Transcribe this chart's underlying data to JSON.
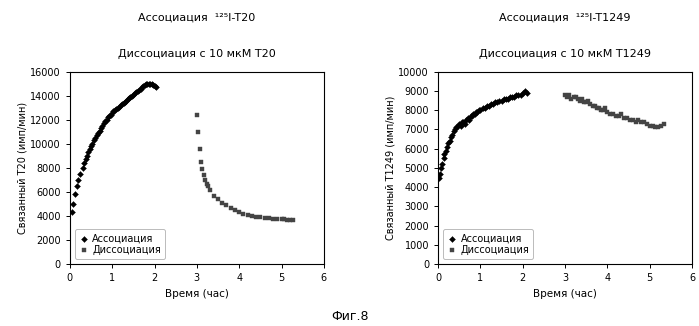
{
  "fig_title": "Фиг.8",
  "left_plot": {
    "title_line1": "Ассоциация  ¹²⁵I-T20",
    "title_line2": "Диссоциация с 10 мкМ T20",
    "xlabel": "Время (час)",
    "ylabel": "Связанный T20 (имп/мин)",
    "xlim": [
      0,
      6
    ],
    "ylim": [
      0,
      16000
    ],
    "yticks": [
      0,
      2000,
      4000,
      6000,
      8000,
      10000,
      12000,
      14000,
      16000
    ],
    "xticks": [
      0,
      1,
      2,
      3,
      4,
      5,
      6
    ],
    "legend_assoc": "Ассоциация",
    "legend_dissoc": "Диссоциация",
    "assoc_x": [
      0.05,
      0.08,
      0.12,
      0.16,
      0.2,
      0.25,
      0.3,
      0.33,
      0.37,
      0.4,
      0.43,
      0.47,
      0.5,
      0.53,
      0.57,
      0.6,
      0.63,
      0.67,
      0.7,
      0.73,
      0.77,
      0.8,
      0.83,
      0.87,
      0.9,
      0.93,
      0.97,
      1.0,
      1.03,
      1.07,
      1.1,
      1.13,
      1.17,
      1.2,
      1.23,
      1.27,
      1.3,
      1.33,
      1.37,
      1.4,
      1.43,
      1.47,
      1.5,
      1.53,
      1.57,
      1.6,
      1.63,
      1.67,
      1.7,
      1.73,
      1.77,
      1.8,
      1.83,
      1.87,
      1.9,
      1.93,
      1.97,
      2.0,
      2.03
    ],
    "assoc_y": [
      4300,
      5000,
      5800,
      6500,
      7000,
      7500,
      8000,
      8400,
      8700,
      9000,
      9300,
      9600,
      9800,
      10000,
      10300,
      10500,
      10700,
      10900,
      11100,
      11300,
      11500,
      11700,
      11900,
      12000,
      12200,
      12300,
      12400,
      12600,
      12700,
      12800,
      12900,
      13000,
      13100,
      13200,
      13300,
      13400,
      13500,
      13600,
      13700,
      13800,
      13900,
      14000,
      14100,
      14200,
      14300,
      14400,
      14500,
      14600,
      14700,
      14800,
      14900,
      15000,
      15000,
      15000,
      15000,
      15000,
      14900,
      14800,
      14700
    ],
    "dissoc_x": [
      3.0,
      3.03,
      3.07,
      3.1,
      3.13,
      3.17,
      3.2,
      3.23,
      3.27,
      3.3,
      3.4,
      3.5,
      3.6,
      3.7,
      3.8,
      3.9,
      4.0,
      4.1,
      4.2,
      4.3,
      4.4,
      4.5,
      4.6,
      4.7,
      4.8,
      4.9,
      5.0,
      5.07,
      5.13,
      5.2,
      5.27
    ],
    "dissoc_y": [
      12400,
      11000,
      9600,
      8500,
      7900,
      7400,
      7000,
      6700,
      6500,
      6200,
      5700,
      5400,
      5100,
      4900,
      4700,
      4500,
      4300,
      4200,
      4100,
      4000,
      3950,
      3900,
      3850,
      3800,
      3780,
      3760,
      3750,
      3750,
      3700,
      3680,
      3650
    ]
  },
  "right_plot": {
    "title_line1": "Ассоциация  ¹²⁵I-T1249",
    "title_line2": "Диссоциация с 10 мкМ T1249",
    "xlabel": "Время (час)",
    "ylabel": "Связанный T1249 (имп/мин)",
    "xlim": [
      0,
      6
    ],
    "ylim": [
      0,
      10000
    ],
    "yticks": [
      0,
      1000,
      2000,
      3000,
      4000,
      5000,
      6000,
      7000,
      8000,
      9000,
      10000
    ],
    "xticks": [
      0,
      1,
      2,
      3,
      4,
      5,
      6
    ],
    "legend_assoc": "Ассоциация",
    "legend_dissoc": "Диссоциация",
    "assoc_x": [
      0.03,
      0.05,
      0.08,
      0.1,
      0.13,
      0.15,
      0.18,
      0.2,
      0.23,
      0.27,
      0.3,
      0.33,
      0.37,
      0.4,
      0.43,
      0.47,
      0.5,
      0.53,
      0.57,
      0.6,
      0.63,
      0.67,
      0.7,
      0.73,
      0.77,
      0.8,
      0.83,
      0.87,
      0.9,
      0.93,
      0.97,
      1.0,
      1.05,
      1.1,
      1.15,
      1.2,
      1.25,
      1.3,
      1.35,
      1.4,
      1.45,
      1.5,
      1.55,
      1.6,
      1.65,
      1.7,
      1.75,
      1.8,
      1.85,
      1.9,
      1.95,
      2.0,
      2.05,
      2.1
    ],
    "assoc_y": [
      4500,
      4700,
      5000,
      5200,
      5500,
      5700,
      5900,
      6100,
      6300,
      6400,
      6600,
      6700,
      6900,
      7000,
      7100,
      7200,
      7300,
      7200,
      7400,
      7400,
      7300,
      7500,
      7600,
      7500,
      7700,
      7700,
      7800,
      7800,
      7900,
      7900,
      8000,
      8000,
      8100,
      8100,
      8200,
      8200,
      8300,
      8300,
      8400,
      8450,
      8500,
      8500,
      8600,
      8600,
      8600,
      8700,
      8700,
      8700,
      8800,
      8800,
      8800,
      8900,
      9000,
      8900
    ],
    "dissoc_x": [
      3.0,
      3.05,
      3.1,
      3.15,
      3.2,
      3.25,
      3.3,
      3.35,
      3.4,
      3.45,
      3.5,
      3.55,
      3.6,
      3.65,
      3.7,
      3.75,
      3.8,
      3.85,
      3.9,
      3.95,
      4.0,
      4.07,
      4.13,
      4.2,
      4.27,
      4.33,
      4.4,
      4.47,
      4.53,
      4.6,
      4.67,
      4.73,
      4.8,
      4.87,
      4.93,
      5.0,
      5.07,
      5.13,
      5.2,
      5.27,
      5.33
    ],
    "dissoc_y": [
      8800,
      8700,
      8800,
      8600,
      8700,
      8700,
      8600,
      8500,
      8600,
      8400,
      8400,
      8500,
      8300,
      8200,
      8200,
      8100,
      8100,
      8000,
      8000,
      8100,
      7900,
      7800,
      7800,
      7700,
      7700,
      7800,
      7600,
      7600,
      7500,
      7500,
      7400,
      7500,
      7400,
      7400,
      7300,
      7200,
      7200,
      7100,
      7100,
      7200,
      7300
    ]
  },
  "bg_color": "#ffffff",
  "outer_bg": "#e8e8e8",
  "marker_size_assoc": 9,
  "marker_size_dissoc": 9,
  "color_assoc": "#000000",
  "color_dissoc": "#444444",
  "font_size_title": 8,
  "font_size_axis": 7.5,
  "font_size_tick": 7,
  "font_size_legend": 7,
  "font_size_caption": 9
}
